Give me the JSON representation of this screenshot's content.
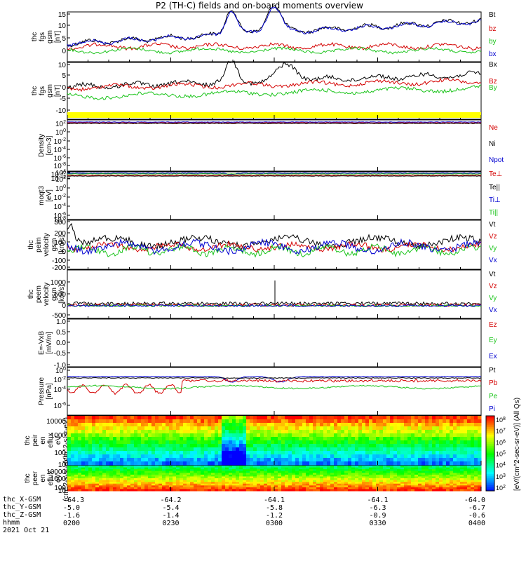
{
  "title": "P2 (TH-C) fields and on-board moments overview",
  "date": "2021 Oct 21",
  "colors": {
    "black": "#000000",
    "red": "#d40000",
    "green": "#1ac41a",
    "blue": "#0000d0",
    "yellow": "#ffff00"
  },
  "ephemeris": {
    "rows": [
      {
        "label": "thc_X-GSM",
        "values": [
          "-64.3",
          "-64.2",
          "-64.1",
          "-64.1",
          "-64.0"
        ]
      },
      {
        "label": "thc_Y-GSM",
        "values": [
          "-5.0",
          "-5.4",
          "-5.8",
          "-6.3",
          "-6.7"
        ]
      },
      {
        "label": "thc_Z-GSM",
        "values": [
          "-1.6",
          "-1.4",
          "-1.2",
          "-0.9",
          "-0.6"
        ]
      },
      {
        "label": "hhmm",
        "values": [
          "0200",
          "0230",
          "0300",
          "0330",
          "0400"
        ]
      }
    ]
  },
  "colorbar": {
    "label": "[eV/(cm^2-sec-sr-eV)] (All Qs)",
    "ticks": [
      "10^8",
      "10^7",
      "10^6",
      "10^5",
      "10^4",
      "10^3",
      "10^2"
    ]
  },
  "chart_data": [
    {
      "type": "line",
      "ylabel": "thc fgs gsm [nT]",
      "ylim": [
        -3,
        16
      ],
      "yticks": [
        "15",
        "10",
        "5",
        "0"
      ],
      "series": [
        {
          "name": "Bt",
          "color": "black"
        },
        {
          "name": "bz",
          "color": "red"
        },
        {
          "name": "by",
          "color": "green"
        },
        {
          "name": "bx",
          "color": "blue"
        }
      ]
    },
    {
      "type": "line",
      "ylabel": "thc fgs gsm [nT]",
      "ylim": [
        -13,
        12
      ],
      "yticks": [
        "10",
        "5",
        "0",
        "-5",
        "-10"
      ],
      "series": [
        {
          "name": "Bx",
          "color": "black"
        },
        {
          "name": "Bz",
          "color": "red"
        },
        {
          "name": "By",
          "color": "green"
        }
      ]
    },
    {
      "type": "line",
      "ylabel": "Density [cm-3]",
      "yscale": "log",
      "yticks": [
        "10^2",
        "10^0",
        "10^-2",
        "10^-4",
        "10^-6",
        "10^-8",
        "10^-10",
        "10^-12"
      ],
      "series": [
        {
          "name": "Ne",
          "color": "red"
        },
        {
          "name": "Ni",
          "color": "black"
        },
        {
          "name": "Npot",
          "color": "blue"
        }
      ]
    },
    {
      "type": "line",
      "ylabel": "moqt3 [eV]",
      "yscale": "log",
      "yticks": [
        "10^4",
        "10^2",
        "10^0",
        "10^-2",
        "10^-4",
        "10^-6",
        "10^-8"
      ],
      "series": [
        {
          "name": "Te⊥",
          "color": "red"
        },
        {
          "name": "Te||",
          "color": "black"
        },
        {
          "name": "Ti⊥",
          "color": "blue"
        },
        {
          "name": "Ti||",
          "color": "green"
        }
      ]
    },
    {
      "type": "line",
      "ylabel": "thc peim velocity gsm [km/s]",
      "ylim": [
        -200,
        300
      ],
      "yticks": [
        "300",
        "200",
        "100",
        "0",
        "-100",
        "-200"
      ],
      "series": [
        {
          "name": "Vt",
          "color": "black"
        },
        {
          "name": "Vz",
          "color": "red"
        },
        {
          "name": "Vy",
          "color": "green"
        },
        {
          "name": "Vx",
          "color": "blue"
        }
      ]
    },
    {
      "type": "line",
      "ylabel": "thc peem velocity gsm [km/s]",
      "ylim": [
        -500,
        1200
      ],
      "yticks": [
        "1000",
        "500",
        "0",
        "-500"
      ],
      "series": [
        {
          "name": "Vt",
          "color": "black"
        },
        {
          "name": "Vz",
          "color": "red"
        },
        {
          "name": "Vy",
          "color": "green"
        },
        {
          "name": "Vx",
          "color": "blue"
        }
      ]
    },
    {
      "type": "line",
      "ylabel": "E=-VxB [mV/m]",
      "ylim": [
        -1,
        1
      ],
      "yticks": [
        "1.0",
        "0.5",
        "0.0",
        "-0.5",
        "-1.0"
      ],
      "series": [
        {
          "name": "Ez",
          "color": "red"
        },
        {
          "name": "Ey",
          "color": "green"
        },
        {
          "name": "Ex",
          "color": "blue"
        }
      ]
    },
    {
      "type": "line",
      "ylabel": "Pressure [nPa]",
      "yscale": "log",
      "yticks": [
        "10^0",
        "10^-2",
        "10^-4",
        "10^-6"
      ],
      "series": [
        {
          "name": "Pt",
          "color": "black"
        },
        {
          "name": "Pb",
          "color": "red"
        },
        {
          "name": "Pe",
          "color": "green"
        },
        {
          "name": "Pi",
          "color": "blue"
        }
      ]
    },
    {
      "type": "heatmap",
      "ylabel": "thc peir en eflux eV (cm^2-s-sr-eV)",
      "yscale": "log",
      "yticks": [
        "10000",
        "1000",
        "100",
        "10"
      ]
    },
    {
      "type": "heatmap",
      "ylabel": "thc peer en eflux eV (cm^2-s-sr-eV)",
      "yscale": "log",
      "yticks": [
        "10000",
        "1000",
        "100",
        "10"
      ]
    }
  ]
}
